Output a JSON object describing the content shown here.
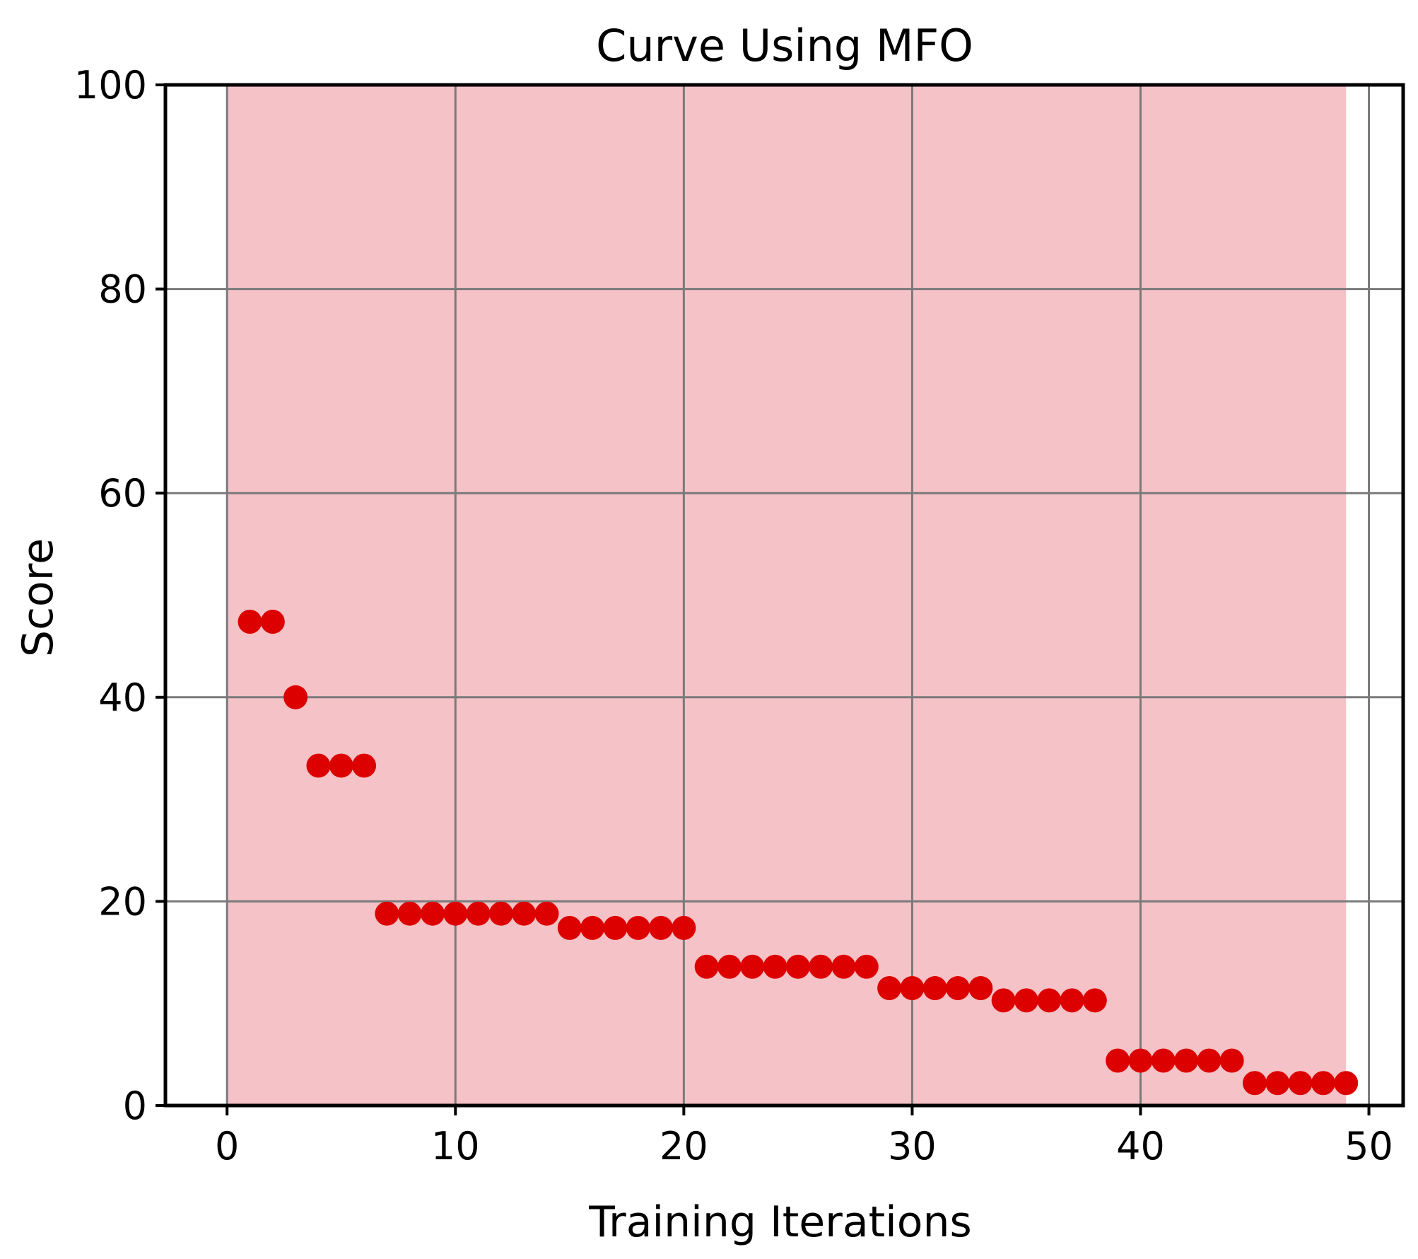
{
  "chart_data": {
    "type": "scatter",
    "title": "Curve Using MFO",
    "xlabel": "Training Iterations",
    "ylabel": "Score",
    "xlim": [
      -2.7,
      51.5
    ],
    "ylim": [
      0,
      100
    ],
    "x_ticks": [
      0,
      10,
      20,
      30,
      40,
      50
    ],
    "y_ticks": [
      0,
      20,
      40,
      60,
      80,
      100
    ],
    "x_tick_labels": [
      "0",
      "10",
      "20",
      "30",
      "40",
      "50"
    ],
    "y_tick_labels": [
      "0",
      "20",
      "40",
      "60",
      "80",
      "100"
    ],
    "grid": true,
    "shaded_x_range": [
      0,
      49
    ],
    "colors": {
      "marker": "#dd0000",
      "shade": "#f5c2c7",
      "grid": "#7a7a7a",
      "axes": "#000000",
      "background": "#ffffff"
    },
    "series": [
      {
        "name": "Score",
        "x": [
          1,
          2,
          3,
          4,
          5,
          6,
          7,
          8,
          9,
          10,
          11,
          12,
          13,
          14,
          15,
          16,
          17,
          18,
          19,
          20,
          21,
          22,
          23,
          24,
          25,
          26,
          27,
          28,
          29,
          30,
          31,
          32,
          33,
          34,
          35,
          36,
          37,
          38,
          39,
          40,
          41,
          42,
          43,
          44,
          45,
          46,
          47,
          48,
          49
        ],
        "y": [
          47.4,
          47.4,
          40.0,
          33.3,
          33.3,
          33.3,
          18.8,
          18.8,
          18.8,
          18.8,
          18.8,
          18.8,
          18.8,
          18.8,
          17.4,
          17.4,
          17.4,
          17.4,
          17.4,
          17.4,
          13.6,
          13.6,
          13.6,
          13.6,
          13.6,
          13.6,
          13.6,
          13.6,
          11.5,
          11.5,
          11.5,
          11.5,
          11.5,
          10.3,
          10.3,
          10.3,
          10.3,
          10.3,
          4.4,
          4.4,
          4.4,
          4.4,
          4.4,
          4.4,
          2.2,
          2.2,
          2.2,
          2.2,
          2.2
        ]
      }
    ]
  }
}
